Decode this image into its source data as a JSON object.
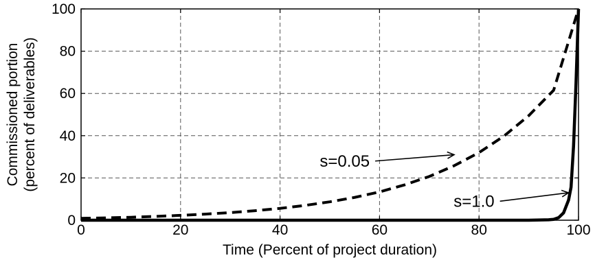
{
  "chart_data": {
    "type": "line",
    "xlabel": "Time (Percent of project duration)",
    "ylabel_lines": [
      "Commissioned portion",
      "(percent of deliverables)"
    ],
    "xlim": [
      0,
      100
    ],
    "ylim": [
      0,
      100
    ],
    "x_ticks": [
      0,
      20,
      40,
      60,
      80,
      100
    ],
    "y_ticks": [
      0,
      20,
      40,
      60,
      80,
      100
    ],
    "grid": true,
    "series": [
      {
        "name": "s=0.05",
        "style": "dashed",
        "color": "#000000",
        "x": [
          0,
          5,
          10,
          15,
          20,
          25,
          30,
          35,
          40,
          45,
          50,
          55,
          60,
          65,
          70,
          75,
          80,
          85,
          90,
          95,
          100
        ],
        "y": [
          0.9,
          1.1,
          1.4,
          1.8,
          2.3,
          2.9,
          3.6,
          4.5,
          5.6,
          7.0,
          8.7,
          10.8,
          13.4,
          16.7,
          20.7,
          25.8,
          32.0,
          39.8,
          49.5,
          61.5,
          100
        ]
      },
      {
        "name": "s=1.0",
        "style": "solid",
        "color": "#000000",
        "x": [
          0,
          60,
          80,
          90,
          94,
          95,
          96,
          97,
          98,
          98.5,
          99,
          99.5,
          100
        ],
        "y": [
          0,
          0,
          0,
          0,
          0.2,
          0.4,
          1.2,
          3.5,
          9.5,
          15.6,
          35,
          65,
          100
        ]
      }
    ],
    "annotations": [
      {
        "text": "s=0.05",
        "x": 53,
        "y": 28,
        "arrow_to": [
          75,
          31
        ]
      },
      {
        "text": "s=1.0",
        "x": 79,
        "y": 9,
        "arrow_to": [
          98,
          13
        ]
      }
    ]
  }
}
